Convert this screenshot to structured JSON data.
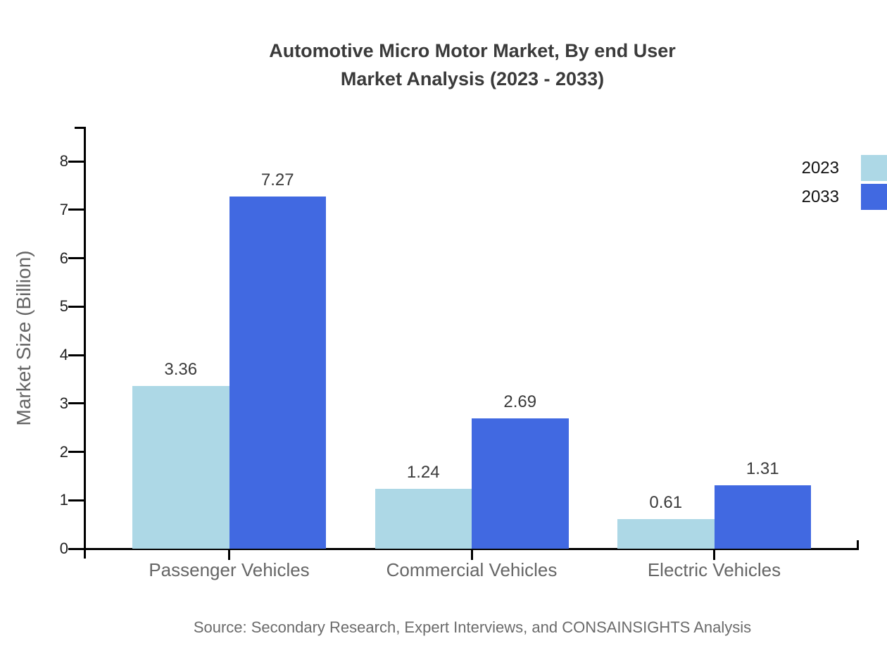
{
  "title": {
    "line1": "Automotive Micro Motor Market, By end User",
    "line2": "Market Analysis (2023 - 2033)"
  },
  "chart_data": {
    "type": "bar",
    "categories": [
      "Passenger Vehicles",
      "Commercial Vehicles",
      "Electric Vehicles"
    ],
    "series": [
      {
        "name": "2023",
        "color": "#ADD8E6",
        "values": [
          3.36,
          1.24,
          0.61
        ]
      },
      {
        "name": "2033",
        "color": "#4169E1",
        "values": [
          7.27,
          2.69,
          1.31
        ]
      }
    ],
    "value_labels": [
      "3.36",
      "7.27",
      "1.24",
      "2.69",
      "0.61",
      "1.31"
    ],
    "ylabel": "Market Size (Billion)",
    "xlabel": "",
    "ylim": [
      0,
      8
    ],
    "yticks": [
      0,
      1,
      2,
      3,
      4,
      5,
      6,
      7,
      8
    ],
    "grid": false,
    "legend_position": "top-right"
  },
  "legend": {
    "items": [
      {
        "label": "2023",
        "color": "#ADD8E6"
      },
      {
        "label": "2033",
        "color": "#4169E1"
      }
    ]
  },
  "footer": {
    "source": "Source: Secondary Research, Expert Interviews, and CONSAINSIGHTS Analysis"
  },
  "colors": {
    "series_2023": "#ADD8E6",
    "series_2033": "#4169E1",
    "title_text": "#3a3a3a",
    "axis_line": "#000000",
    "tick_label": "#1f1f1f",
    "muted_text": "#666666",
    "legend_text": "#111111"
  }
}
